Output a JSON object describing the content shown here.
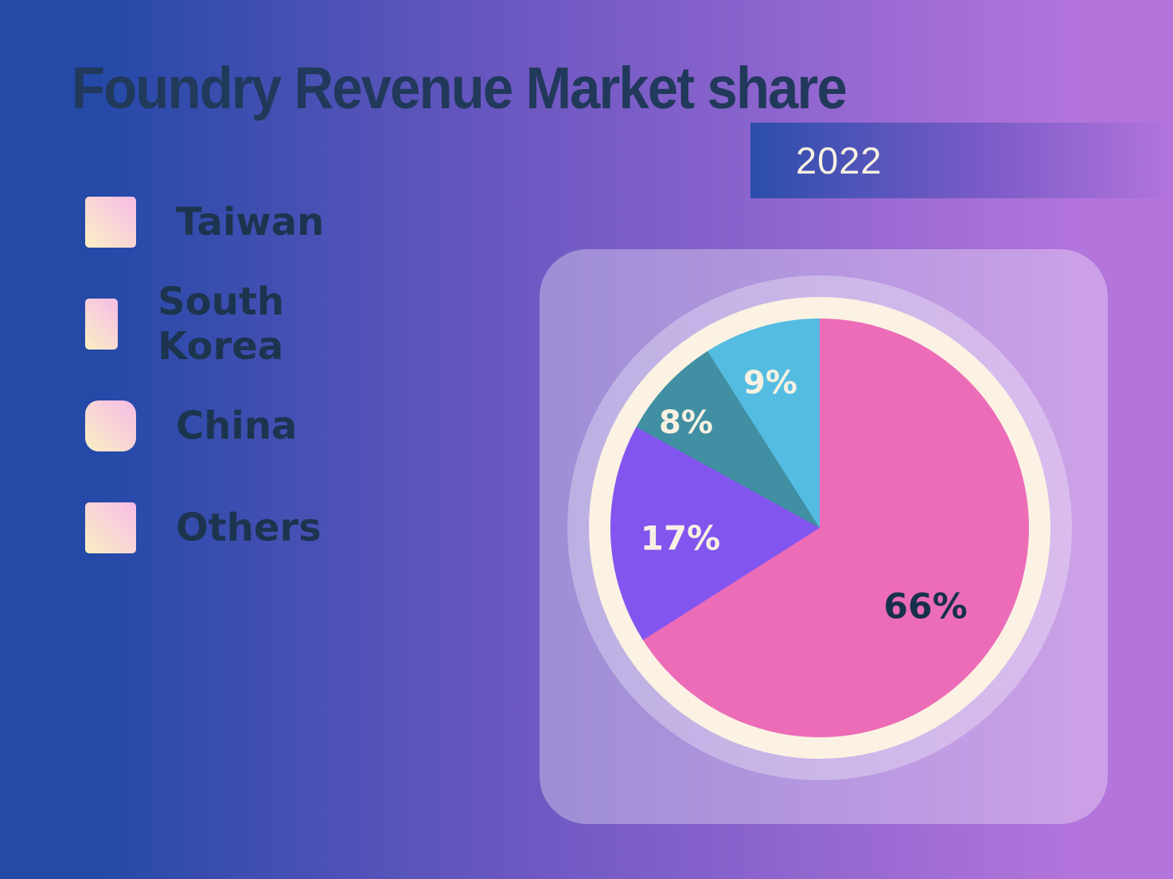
{
  "title": "Foundry Revenue Market share",
  "banner": {
    "year": "2022"
  },
  "legend": {
    "items": [
      {
        "label": "Taiwan",
        "color": "#EC6CB8"
      },
      {
        "label": "South Korea",
        "color": "#8355EF"
      },
      {
        "label": "China",
        "color": "#418FA3"
      },
      {
        "label": "Others",
        "color": "#55BCE1"
      }
    ]
  },
  "colors": {
    "bg_left": "#2449A7",
    "bg_right": "#B374DC",
    "banner_blue": "#2B4EAB",
    "title_text": "#21395A",
    "legend_text": "#1D344F",
    "cream_text": "#F8F1E2",
    "navy_label": "#17314D",
    "ring_cream": "#FBF2E3",
    "card_overlay": "rgba(255,255,255,0.32)",
    "halo_overlay": "rgba(255,255,255,0.30)",
    "swatch_border_yellow": "#FAF0C3",
    "swatch_border_pink": "#F6BBE7"
  },
  "chart_data": {
    "type": "pie",
    "title": "Foundry Revenue Market share",
    "subtitle": "2022",
    "categories": [
      "Taiwan",
      "South Korea",
      "China",
      "Others"
    ],
    "values": [
      66,
      17,
      8,
      9
    ],
    "value_labels": [
      "66%",
      "17%",
      "8%",
      "9%"
    ],
    "colors": [
      "#EC6CB8",
      "#8355EF",
      "#418FA3",
      "#55BCE1"
    ],
    "start_angle_deg": 0,
    "direction": "clockwise",
    "legend_position": "left"
  }
}
